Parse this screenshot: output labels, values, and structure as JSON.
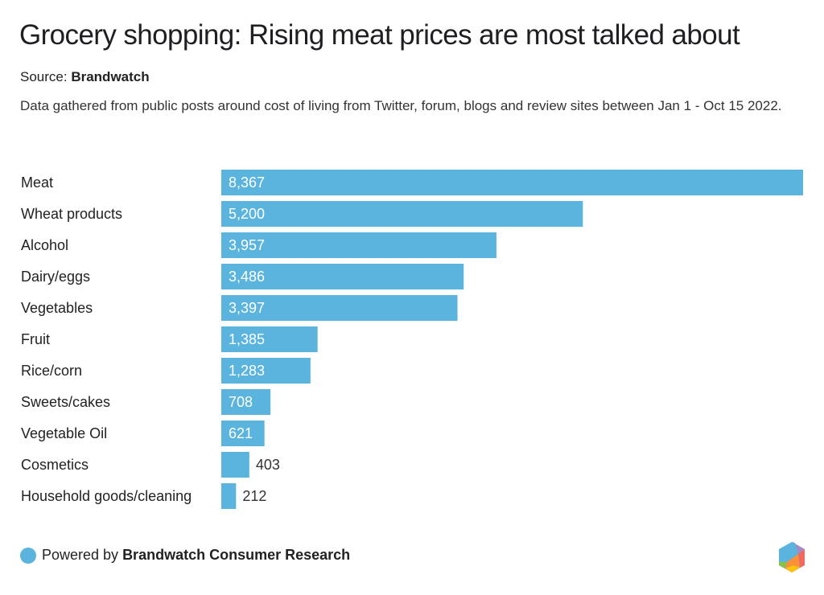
{
  "header": {
    "title": "Grocery shopping: Rising meat prices are most talked about",
    "source_label": "Source:",
    "source_name": "Brandwatch",
    "description": "Data gathered from public posts around cost of living from Twitter, forum, blogs and review sites between Jan 1 - Oct 15 2022."
  },
  "footer": {
    "powered_by_label": "Powered by",
    "powered_by_name": "Brandwatch Consumer Research",
    "logo_icon": "brandwatch-hexagon-logo"
  },
  "colors": {
    "bar": "#5ab4dd",
    "label_inside": "#ffffff",
    "label_outside": "#333333"
  },
  "chart_data": {
    "type": "bar",
    "orientation": "horizontal",
    "title": "Grocery shopping: Rising meat prices are most talked about",
    "xlabel": "",
    "ylabel": "",
    "grid": false,
    "legend": "none",
    "xlim": [
      0,
      8367
    ],
    "categories": [
      "Meat",
      "Wheat products",
      "Alcohol",
      "Dairy/eggs",
      "Vegetables",
      "Fruit",
      "Rice/corn",
      "Sweets/cakes",
      "Vegetable Oil",
      "Cosmetics",
      "Household goods/cleaning"
    ],
    "values": [
      8367,
      5200,
      3957,
      3486,
      3397,
      1385,
      1283,
      708,
      621,
      403,
      212
    ],
    "value_labels": [
      "8,367",
      "5,200",
      "3,957",
      "3,486",
      "3,397",
      "1,385",
      "1,283",
      "708",
      "621",
      "403",
      "212"
    ]
  }
}
